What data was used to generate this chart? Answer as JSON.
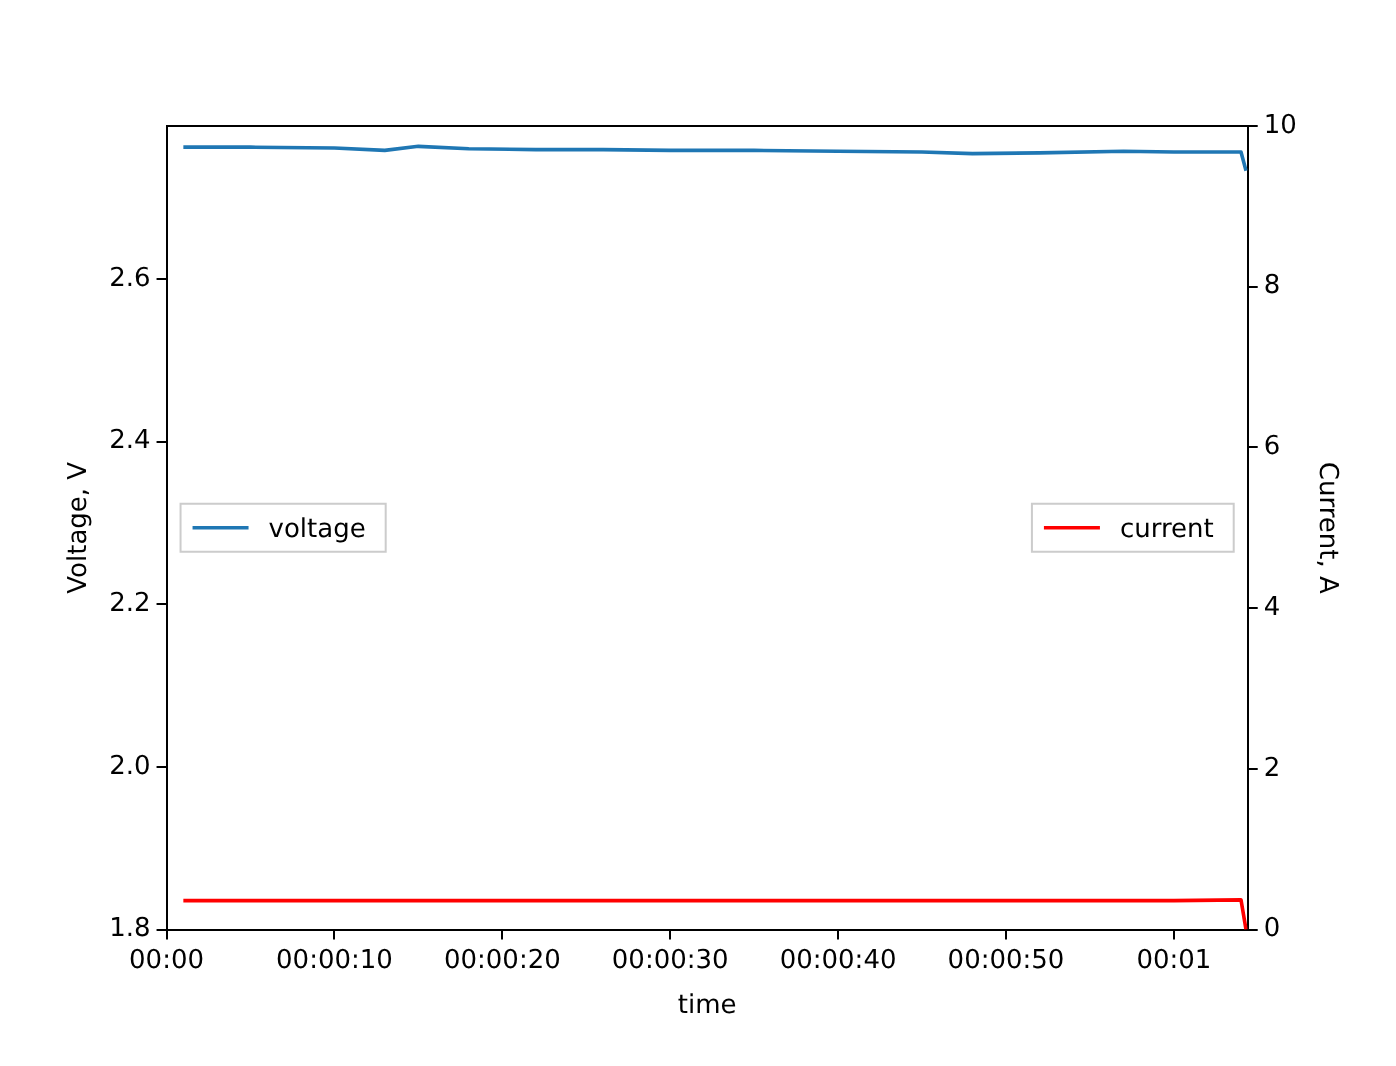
{
  "chart_data": {
    "type": "line",
    "xlabel": "time",
    "ylabel": "Voltage, V",
    "y2label": "Current, A",
    "x": [
      0.000278,
      0.001389,
      0.002778,
      0.003611,
      0.004167,
      0.005,
      0.006111,
      0.007222,
      0.008333,
      0.009722,
      0.011111,
      0.0125,
      0.013333,
      0.014444,
      0.015833,
      0.016667,
      0.017778,
      0.017861
    ],
    "series": [
      {
        "name": "voltage",
        "color": "#1f77b4",
        "values": [
          2.762,
          2.762,
          2.761,
          2.758,
          2.763,
          2.76,
          2.759,
          2.759,
          2.758,
          2.758,
          2.757,
          2.756,
          2.754,
          2.755,
          2.757,
          2.756,
          2.756,
          2.733
        ]
      },
      {
        "name": "current",
        "color": "#ff0000",
        "axis": "y2",
        "values": [
          0.36,
          0.36,
          0.36,
          0.36,
          0.36,
          0.36,
          0.36,
          0.36,
          0.36,
          0.36,
          0.36,
          0.36,
          0.36,
          0.36,
          0.36,
          0.36,
          0.37,
          0
        ]
      }
    ],
    "xlim": [
      0,
      0.017889
    ],
    "xticks": [
      {
        "value": 0,
        "label": "00:00"
      },
      {
        "value": 0.002778,
        "label": "00:00:10"
      },
      {
        "value": 0.005556,
        "label": "00:00:20"
      },
      {
        "value": 0.008333,
        "label": "00:00:30"
      },
      {
        "value": 0.011111,
        "label": "00:00:40"
      },
      {
        "value": 0.013889,
        "label": "00:00:50"
      },
      {
        "value": 0.016667,
        "label": "00:01"
      }
    ],
    "ylim": [
      1.8,
      2.788
    ],
    "yticks": [
      {
        "value": 1.8,
        "label": "1.8"
      },
      {
        "value": 2.0,
        "label": "2.0"
      },
      {
        "value": 2.2,
        "label": "2.2"
      },
      {
        "value": 2.4,
        "label": "2.4"
      },
      {
        "value": 2.6,
        "label": "2.6"
      }
    ],
    "y2lim": [
      0,
      10
    ],
    "y2ticks": [
      0,
      2,
      4,
      6,
      8,
      10
    ],
    "legend": "center",
    "grid": false,
    "line_style": "solid",
    "marker": "none"
  }
}
